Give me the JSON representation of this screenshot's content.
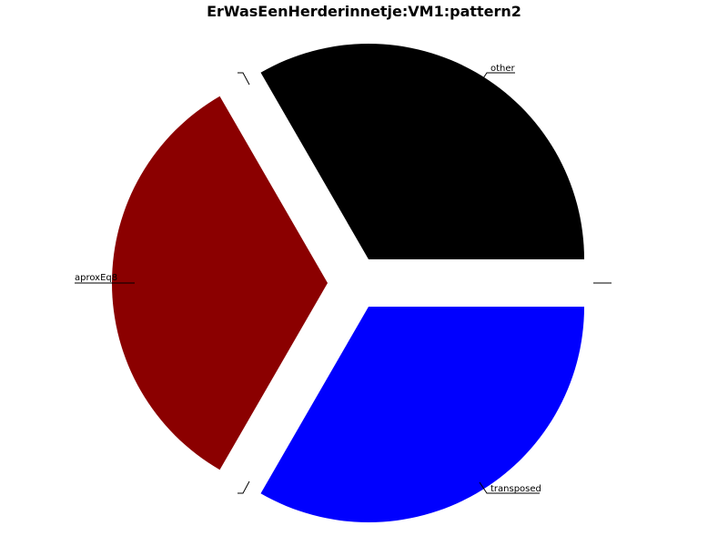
{
  "chart_data": {
    "type": "pie",
    "title": "ErWasEenHerderinnetje:VM1:pattern2",
    "slices": [
      {
        "label": "other",
        "value": 1,
        "color": "#000000"
      },
      {
        "label": "aproxEq8",
        "value": 1,
        "color": "#8b0000"
      },
      {
        "label": "transposed",
        "value": 1,
        "color": "#0000ff"
      },
      {
        "label": "",
        "value": 0,
        "color": "#ffffff"
      },
      {
        "label": "",
        "value": 0,
        "color": "#ffffff"
      },
      {
        "label": "",
        "value": 0,
        "color": "#ffffff"
      }
    ],
    "exploded": true
  }
}
